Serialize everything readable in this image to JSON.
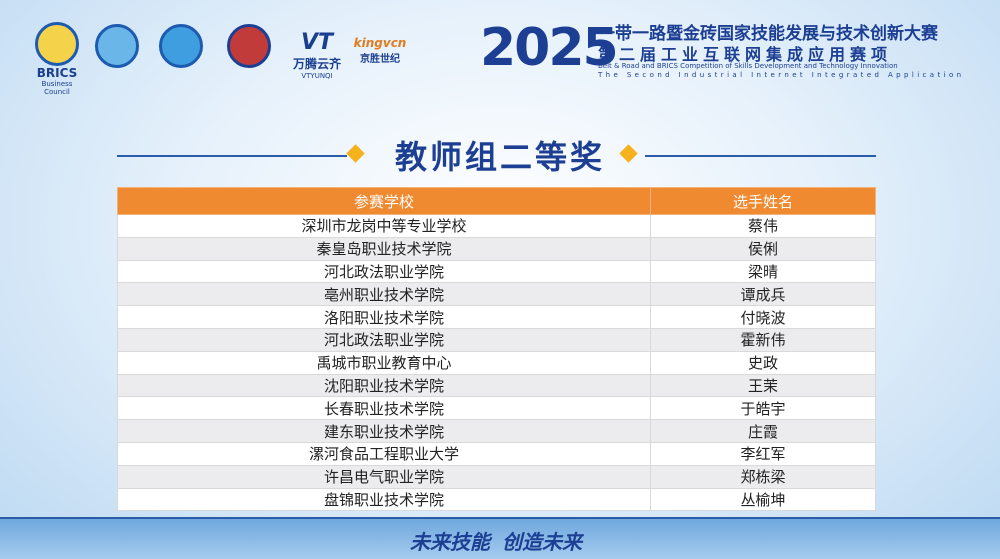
{
  "header": {
    "logos": [
      {
        "text": "BRICS",
        "subtext": "Business Council"
      },
      {
        "text": "万腾云齐",
        "subtext": "VTYUNQI"
      },
      {
        "text": "kingvcn",
        "subtext": "京胜世纪"
      }
    ],
    "year": "2025",
    "title_cn": "一带一路暨金砖国家技能发展与技术创新大赛",
    "subtitle_cn": "第二届工业互联网集成应用赛项",
    "title_en": "Belt & Road and BRICS Competition of Skills Development and Technology Innovation",
    "subtitle_en": "The Second Industrial Internet Integrated Application"
  },
  "section_title": "教师组二等奖",
  "table": {
    "columns": [
      "参赛学校",
      "选手姓名"
    ],
    "rows": [
      [
        "深圳市龙岗中等专业学校",
        "蔡伟"
      ],
      [
        "秦皇岛职业技术学院",
        "侯俐"
      ],
      [
        "河北政法职业学院",
        "梁晴"
      ],
      [
        "亳州职业技术学院",
        "谭成兵"
      ],
      [
        "洛阳职业技术学院",
        "付晓波"
      ],
      [
        "河北政法职业学院",
        "霍新伟"
      ],
      [
        "禹城市职业教育中心",
        "史政"
      ],
      [
        "沈阳职业技术学院",
        "王茉"
      ],
      [
        "长春职业技术学院",
        "于皓宇"
      ],
      [
        "建东职业技术学院",
        "庄霞"
      ],
      [
        "漯河食品工程职业大学",
        "李红军"
      ],
      [
        "许昌电气职业学院",
        "郑栋梁"
      ],
      [
        "盘锦职业技术学院",
        "丛榆坤"
      ]
    ]
  },
  "footer": {
    "slogan_left": "未来技能",
    "slogan_right": "创造未来"
  }
}
